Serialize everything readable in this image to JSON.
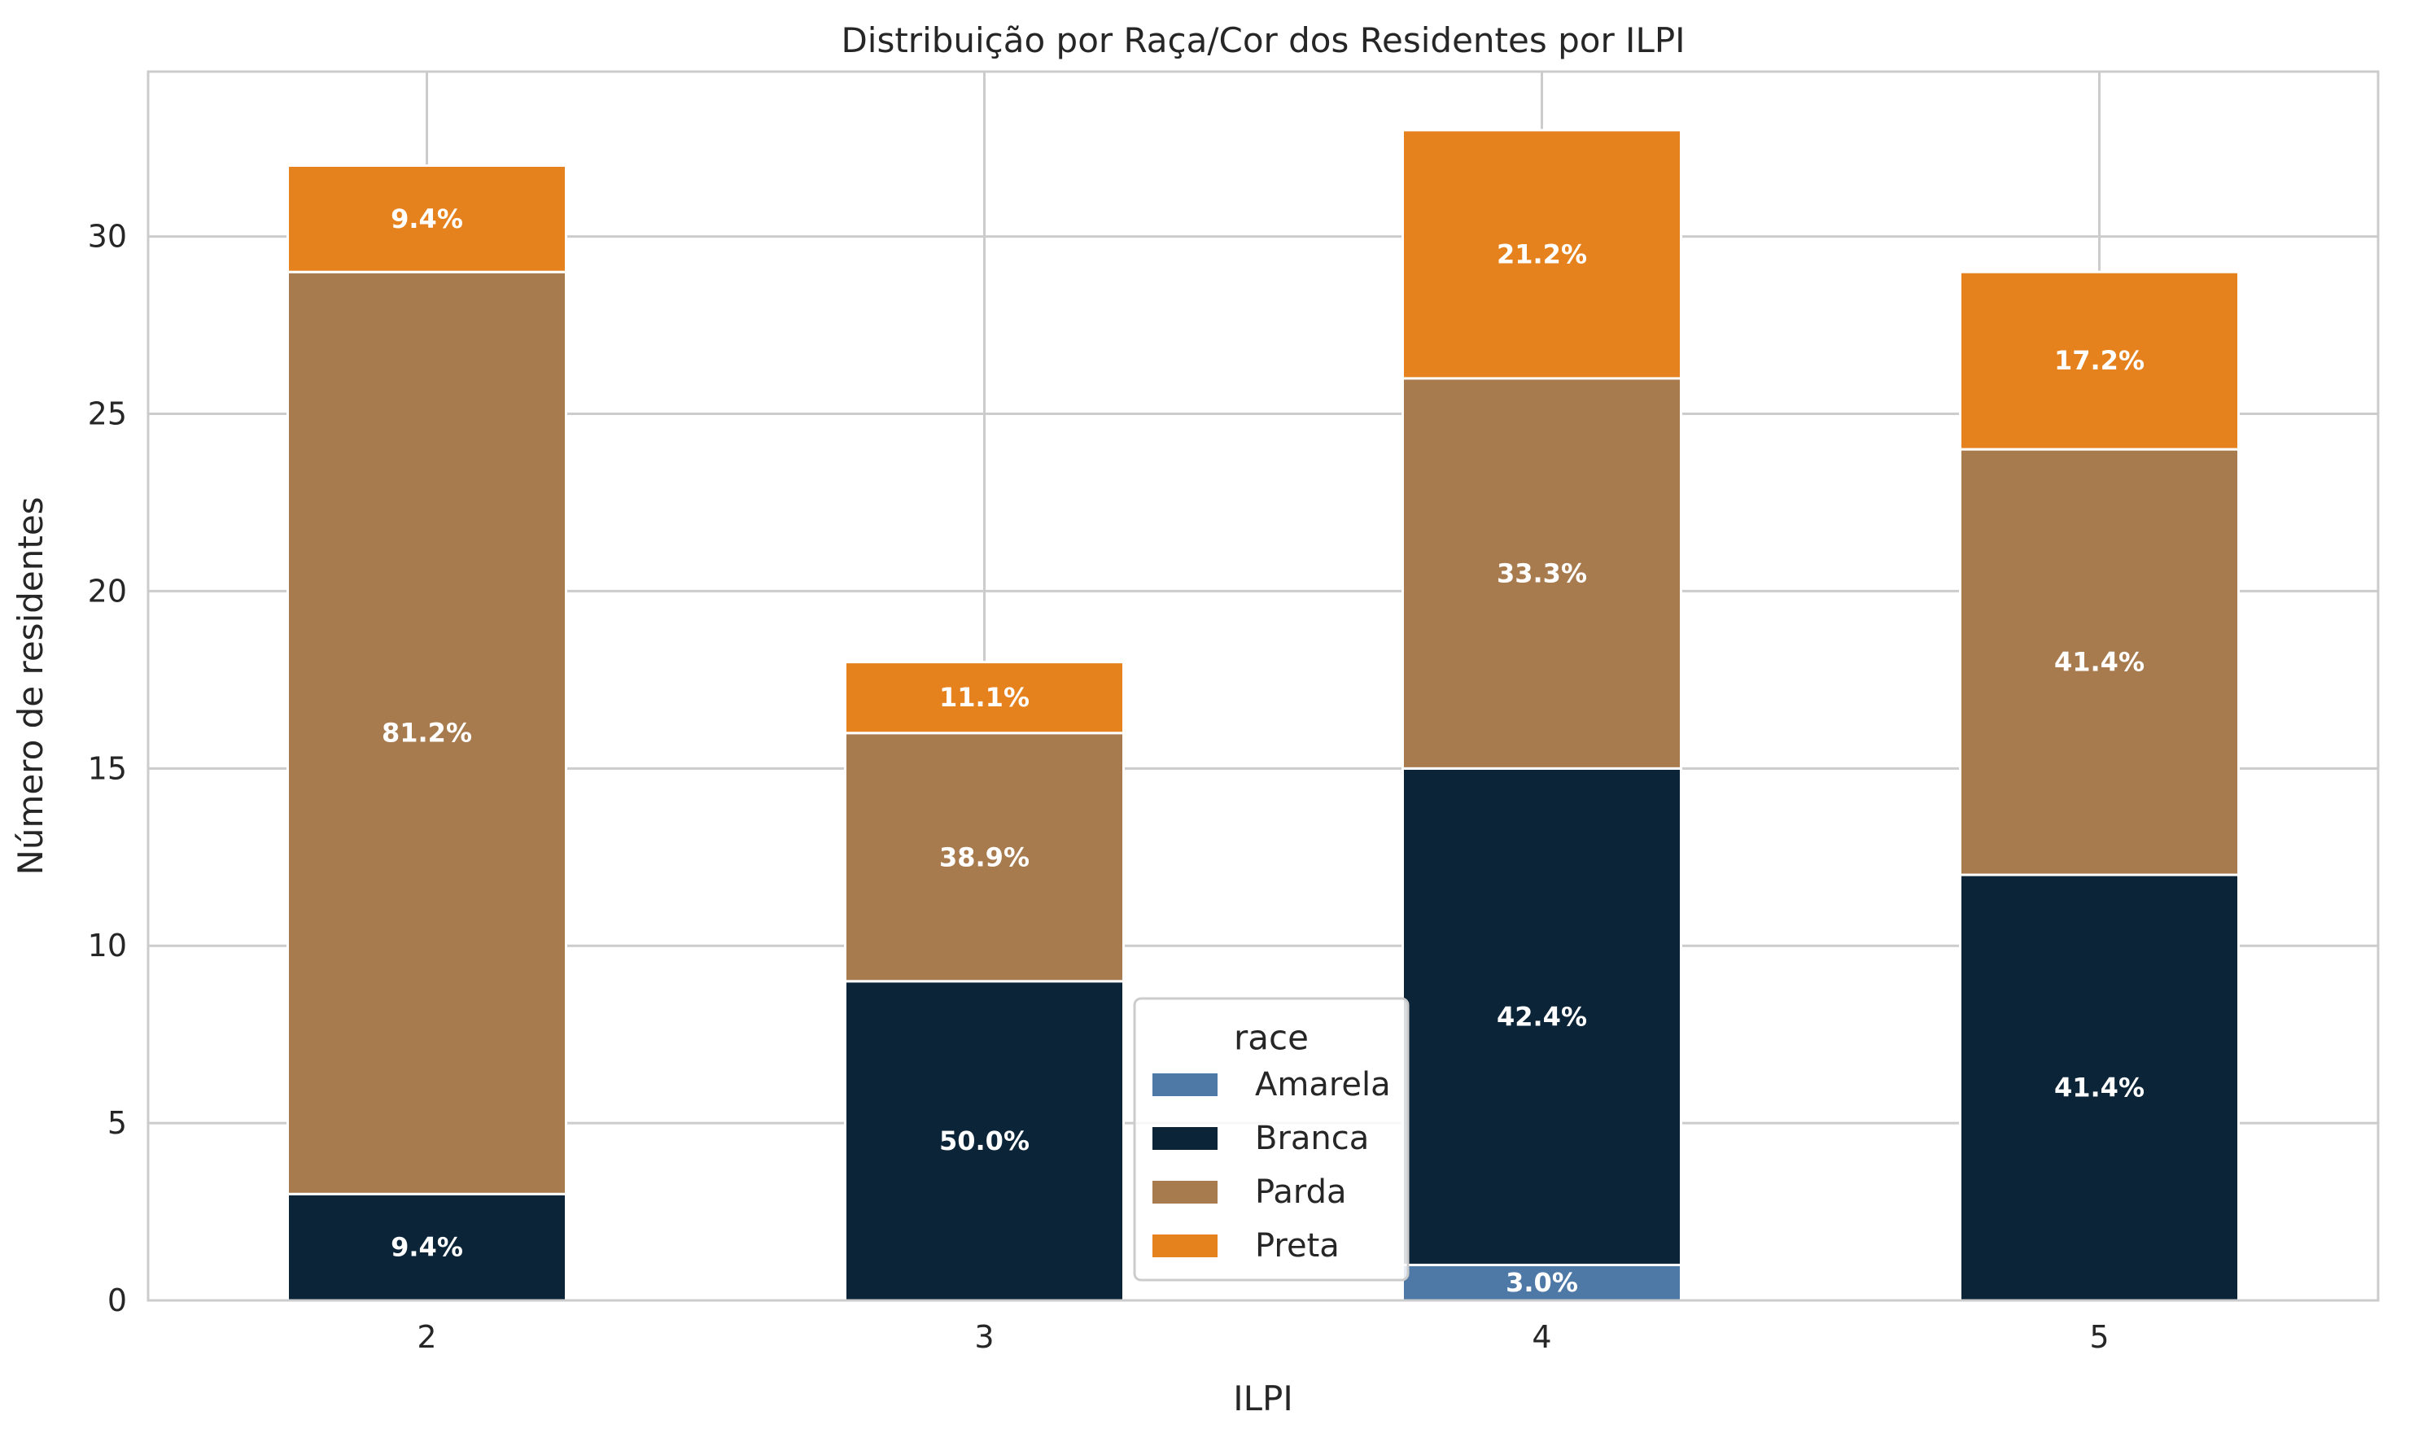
{
  "chart_data": {
    "type": "bar",
    "stacked": true,
    "title": "Distribuição por Raça/Cor dos Residentes por ILPI",
    "xlabel": "ILPI",
    "ylabel": "Número de residentes",
    "categories": [
      "2",
      "3",
      "4",
      "5"
    ],
    "ylim": [
      0,
      34.65
    ],
    "yticks": [
      0,
      5,
      10,
      15,
      20,
      25,
      30
    ],
    "grid": true,
    "legend": {
      "title": "race",
      "placement": "lower-center"
    },
    "series": [
      {
        "name": "Amarela",
        "color": "#4e79a7",
        "values": [
          0,
          0,
          1,
          0
        ],
        "labels": [
          "",
          "",
          "3.0%",
          ""
        ]
      },
      {
        "name": "Branca",
        "color": "#0b2438",
        "values": [
          3,
          9,
          14,
          12
        ],
        "labels": [
          "9.4%",
          "50.0%",
          "42.4%",
          "41.4%"
        ]
      },
      {
        "name": "Parda",
        "color": "#a87b4f",
        "values": [
          26,
          7,
          11,
          12
        ],
        "labels": [
          "81.2%",
          "38.9%",
          "33.3%",
          "41.4%"
        ]
      },
      {
        "name": "Preta",
        "color": "#e6821e",
        "values": [
          3,
          2,
          7,
          5
        ],
        "labels": [
          "9.4%",
          "11.1%",
          "21.2%",
          "17.2%"
        ]
      }
    ]
  }
}
